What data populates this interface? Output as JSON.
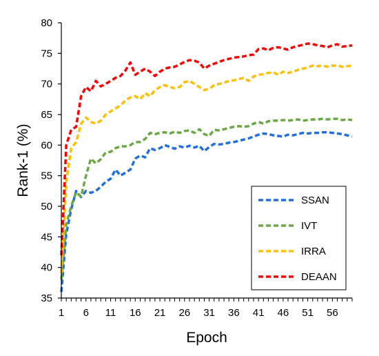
{
  "chart_data": {
    "type": "line",
    "xlabel": "Epoch",
    "ylabel": "Rank-1 (%)",
    "xlim": [
      1,
      60
    ],
    "ylim": [
      35,
      80
    ],
    "yticks": [
      35,
      40,
      45,
      50,
      55,
      60,
      65,
      70,
      75,
      80
    ],
    "xticks": [
      1,
      6,
      11,
      16,
      21,
      26,
      31,
      36,
      41,
      46,
      51,
      56
    ],
    "grid": false,
    "legend_position": "bottom-right",
    "x": [
      1,
      2,
      3,
      4,
      5,
      6,
      7,
      8,
      9,
      10,
      11,
      12,
      13,
      14,
      15,
      16,
      17,
      18,
      19,
      20,
      21,
      22,
      23,
      24,
      25,
      26,
      27,
      28,
      29,
      30,
      31,
      32,
      33,
      34,
      35,
      36,
      37,
      38,
      39,
      40,
      41,
      42,
      43,
      44,
      45,
      46,
      47,
      48,
      49,
      50,
      51,
      52,
      53,
      54,
      55,
      56,
      57,
      58,
      59,
      60
    ],
    "series": [
      {
        "name": "SSAN",
        "color": "#1f6fe0",
        "values": [
          36.0,
          45.5,
          49.5,
          52.5,
          51.5,
          52.5,
          52.2,
          52.5,
          53.2,
          54.0,
          54.5,
          56.0,
          55.0,
          55.5,
          56.0,
          57.8,
          58.3,
          58.0,
          59.5,
          59.2,
          59.5,
          60.0,
          59.7,
          59.4,
          59.8,
          59.6,
          59.9,
          59.6,
          59.9,
          59.0,
          59.7,
          60.2,
          60.1,
          60.2,
          60.4,
          60.5,
          60.7,
          60.9,
          61.1,
          61.4,
          61.7,
          61.9,
          61.8,
          61.6,
          61.5,
          61.4,
          61.7,
          61.6,
          61.8,
          62.0,
          61.9,
          62.0,
          62.0,
          62.1,
          62.1,
          62.0,
          61.9,
          61.8,
          61.6,
          61.4
        ]
      },
      {
        "name": "IVT",
        "color": "#6aa843",
        "values": [
          38.0,
          47.0,
          50.0,
          52.3,
          51.6,
          55.0,
          57.8,
          57.0,
          57.7,
          58.8,
          58.9,
          59.5,
          59.8,
          59.8,
          60.0,
          60.5,
          60.5,
          61.0,
          62.0,
          61.8,
          62.0,
          62.1,
          61.9,
          62.2,
          62.0,
          62.3,
          62.4,
          62.0,
          62.6,
          61.8,
          61.5,
          62.5,
          62.4,
          62.6,
          62.8,
          63.0,
          63.1,
          63.0,
          63.1,
          63.5,
          63.8,
          63.5,
          63.9,
          64.0,
          64.0,
          64.1,
          64.0,
          64.1,
          64.2,
          64.0,
          64.1,
          64.2,
          64.2,
          64.3,
          64.2,
          64.3,
          64.3,
          64.1,
          64.2,
          64.1
        ]
      },
      {
        "name": "IRRA",
        "color": "#ffc000",
        "values": [
          39.0,
          54.0,
          59.5,
          60.5,
          63.5,
          64.5,
          63.8,
          63.5,
          64.0,
          65.0,
          65.5,
          66.0,
          66.5,
          67.3,
          67.8,
          68.0,
          67.5,
          68.5,
          68.0,
          69.0,
          69.5,
          69.8,
          69.5,
          69.3,
          69.5,
          70.3,
          70.5,
          70.0,
          69.5,
          69.0,
          69.2,
          69.8,
          70.0,
          70.2,
          70.5,
          70.6,
          70.8,
          71.0,
          70.5,
          71.2,
          71.5,
          71.6,
          71.8,
          71.9,
          71.5,
          72.0,
          71.8,
          72.0,
          72.3,
          72.5,
          72.7,
          73.0,
          72.9,
          73.0,
          72.8,
          73.0,
          73.0,
          72.8,
          72.9,
          73.0
        ]
      },
      {
        "name": "DEAAN",
        "color": "#ff0000",
        "values": [
          42.0,
          60.0,
          62.5,
          63.0,
          68.0,
          69.5,
          68.8,
          70.5,
          69.6,
          70.0,
          70.5,
          71.0,
          71.3,
          72.2,
          73.5,
          71.5,
          72.0,
          72.5,
          72.0,
          71.3,
          72.0,
          72.5,
          72.7,
          72.8,
          73.2,
          73.6,
          73.9,
          73.8,
          73.5,
          72.5,
          73.0,
          73.3,
          73.6,
          73.9,
          74.1,
          74.3,
          74.4,
          74.5,
          74.7,
          74.8,
          75.7,
          75.8,
          75.5,
          75.9,
          76.0,
          75.8,
          75.6,
          76.0,
          76.2,
          76.4,
          76.6,
          76.5,
          76.3,
          76.2,
          76.0,
          76.3,
          76.5,
          76.1,
          76.2,
          76.3
        ]
      }
    ]
  }
}
